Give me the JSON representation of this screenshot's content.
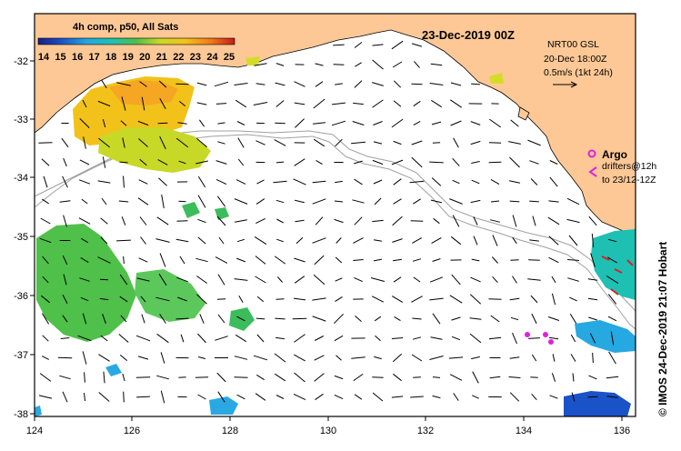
{
  "map_title": "23-Dec-2019 00Z",
  "colorbar": {
    "title": "4h comp, p50, All Sats",
    "ticks": [
      "14",
      "15",
      "16",
      "17",
      "18",
      "19",
      "20",
      "21",
      "22",
      "23",
      "24",
      "25"
    ],
    "min": 14,
    "max": 25
  },
  "info": {
    "line1": "NRT00 GSL",
    "line2": "20-Dec 18:00Z",
    "line3": "0.5m/s (1kt 24h)"
  },
  "legend": {
    "argo_label": "Argo",
    "drifters_line1": "drifters@12h",
    "drifters_line2": "to 23/12-12Z"
  },
  "credit": "© IMOS 24-Dec-2019 21:07 Hobart",
  "x_ticks": [
    "124",
    "126",
    "128",
    "130",
    "132",
    "134",
    "136"
  ],
  "y_ticks": [
    "-32",
    "-33",
    "-34",
    "-35",
    "-36",
    "-37",
    "-38"
  ],
  "colors": {
    "land": "#fdc896",
    "ocean": "#ffffff",
    "frame": "#000000",
    "argo": "#e020e0",
    "drifter": "#e000e0"
  }
}
